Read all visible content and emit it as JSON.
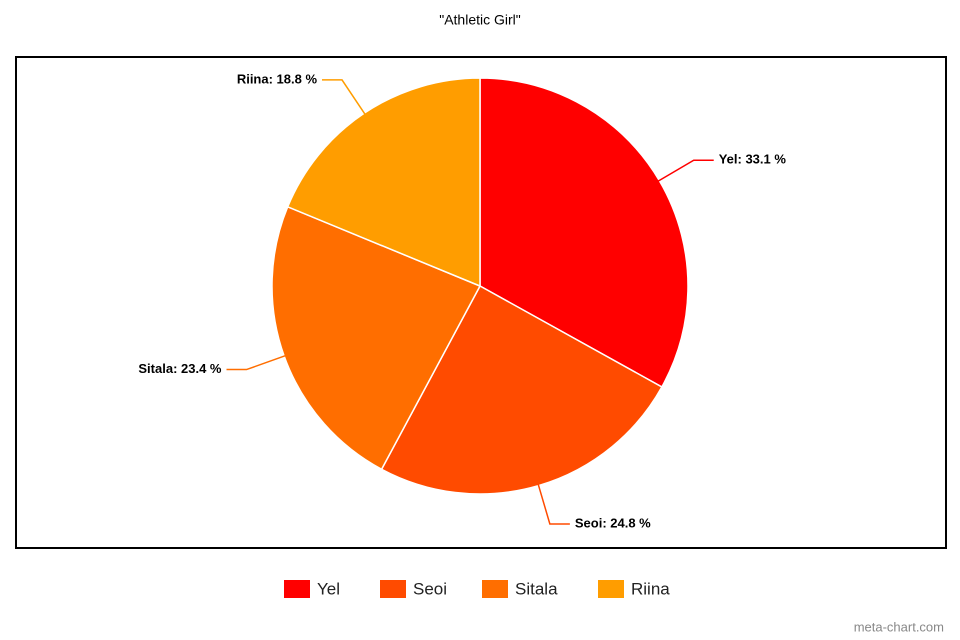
{
  "chart_data": {
    "type": "pie",
    "title": "\"Athletic Girl\"",
    "categories": [
      "Yel",
      "Seoi",
      "Sitala",
      "Riina"
    ],
    "values": [
      33.1,
      24.8,
      23.4,
      18.8
    ],
    "value_labels": [
      "Yel: 33.1 %",
      "Seoi: 24.8 %",
      "Sitala: 23.4 %",
      "Riina: 18.8 %"
    ],
    "colors": [
      "#ff0000",
      "#ff4b00",
      "#ff6e00",
      "#ff9d00"
    ],
    "legend": "bottom",
    "watermark": "meta-chart.com"
  }
}
